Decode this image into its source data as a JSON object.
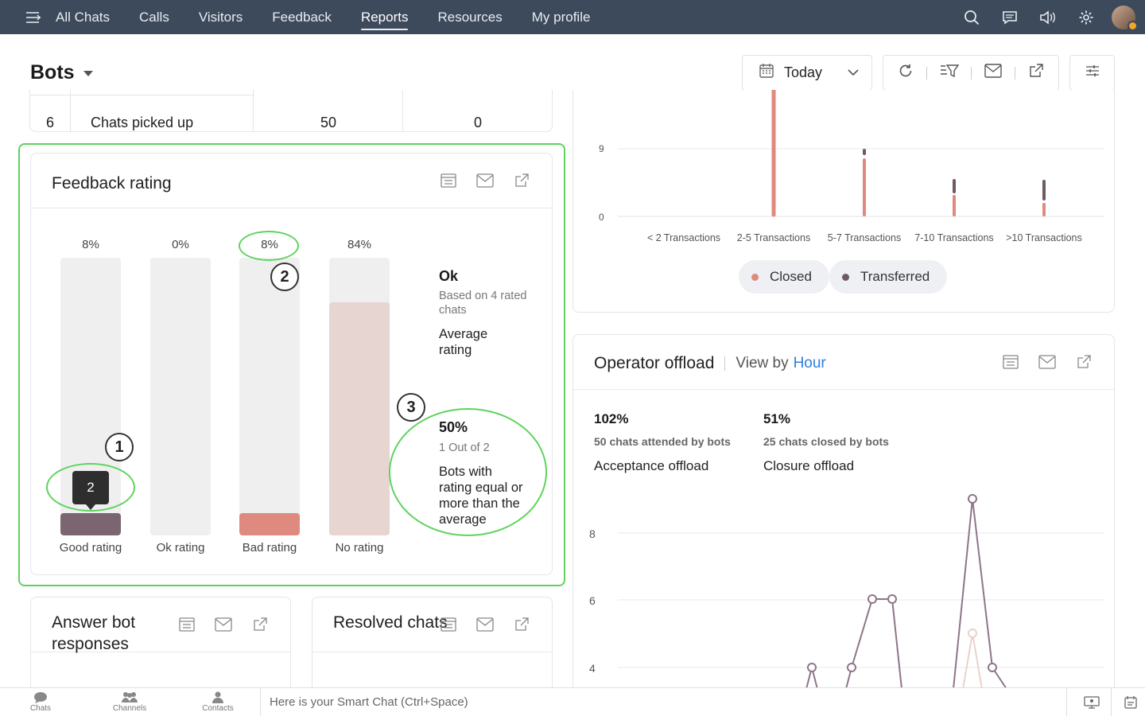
{
  "nav": {
    "items": [
      {
        "label": "All Chats"
      },
      {
        "label": "Calls"
      },
      {
        "label": "Visitors"
      },
      {
        "label": "Feedback"
      },
      {
        "label": "Reports"
      },
      {
        "label": "Resources"
      },
      {
        "label": "My profile"
      }
    ],
    "active": "Reports",
    "icons": [
      "menu-icon",
      "search-icon",
      "chat-icon",
      "speaker-icon",
      "gear-icon"
    ]
  },
  "page": {
    "title": "Bots"
  },
  "toolbar": {
    "date_label": "Today"
  },
  "table_row": {
    "index": "6",
    "name": "Chats picked up",
    "value1": "50",
    "value2": "0"
  },
  "feedback": {
    "title": "Feedback rating",
    "bars": [
      {
        "label": "Good rating",
        "pct_label": "8%",
        "fill": 0.08,
        "color": "#7a6570"
      },
      {
        "label": "Ok rating",
        "pct_label": "0%",
        "fill": 0.0,
        "color": "#efefef"
      },
      {
        "label": "Bad rating",
        "pct_label": "8%",
        "fill": 0.08,
        "color": "#de8a7e"
      },
      {
        "label": "No rating",
        "pct_label": "84%",
        "fill": 0.84,
        "color": "#e6d5d0"
      }
    ],
    "tooltip_value": "2",
    "summary": {
      "rating": "Ok",
      "rating_sub": "Based on 4 rated chats",
      "rating_label": "Average rating",
      "percent": "50%",
      "percent_sub": "1 Out of 2",
      "percent_label": "Bots with rating equal or more than the average"
    },
    "callouts": [
      "1",
      "2",
      "3"
    ]
  },
  "cards": {
    "answer_bot": "Answer bot responses",
    "resolved": "Resolved chats"
  },
  "transactions_chart": {
    "y_ticks": [
      "9",
      "0"
    ],
    "categories": [
      "< 2 Transactions",
      "2-5 Transactions",
      "5-7 Transactions",
      "7-10 Transactions",
      ">10 Transactions"
    ],
    "legend": [
      {
        "name": "Closed",
        "color": "#de8a7e"
      },
      {
        "name": "Transferred",
        "color": "#6e5a66"
      }
    ]
  },
  "operator_offload": {
    "title": "Operator offload",
    "view_by": "View by",
    "view_by_value": "Hour",
    "stats": [
      {
        "value": "102%",
        "sub": "50 chats attended by bots",
        "label": "Acceptance offload"
      },
      {
        "value": "51%",
        "sub": "25 chats closed by bots",
        "label": "Closure offload"
      }
    ],
    "y_ticks": [
      "8",
      "6",
      "4"
    ]
  },
  "bottombar": {
    "items": [
      {
        "label": "Chats"
      },
      {
        "label": "Channels"
      },
      {
        "label": "Contacts"
      }
    ],
    "smartchat_placeholder": "Here is your Smart Chat (Ctrl+Space)"
  },
  "colors": {
    "nav_bg": "#3d4a5c",
    "highlight": "#5fd35f",
    "accent_blue": "#2f7de1",
    "closed": "#de8a7e",
    "transferred": "#6e5a66"
  }
}
